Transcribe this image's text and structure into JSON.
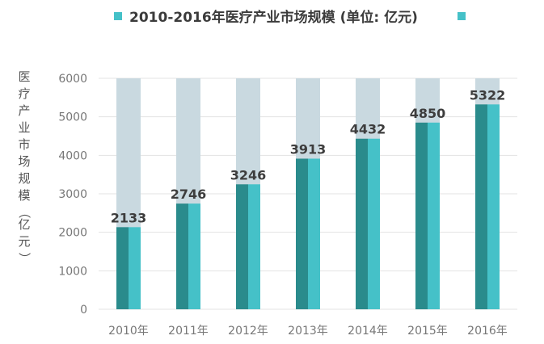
{
  "chart_data": {
    "type": "bar",
    "title": "2010-2016年医疗产业市场规模 (单位: 亿元)",
    "ylabel": "医疗产业市场规模（亿元）",
    "xlabel": "",
    "categories": [
      "2010年",
      "2011年",
      "2012年",
      "2013年",
      "2014年",
      "2015年",
      "2016年"
    ],
    "values": [
      2133,
      2746,
      3246,
      3913,
      4432,
      4850,
      5322
    ],
    "data_labels": [
      "2133",
      "2746",
      "3246",
      "3913",
      "4432",
      "4850",
      "5322"
    ],
    "background_bar_value": 6000,
    "ylim": [
      0,
      6000
    ],
    "yticks": [
      "0",
      "1000",
      "2000",
      "3000",
      "4000",
      "5000",
      "6000"
    ],
    "grid": true,
    "legend": "none",
    "colors": {
      "bar_dark": "#2a8b8c",
      "bar_light": "#45c1c8",
      "background_bar": "#c9d9e0",
      "title_marker": "#45c1c8"
    }
  }
}
